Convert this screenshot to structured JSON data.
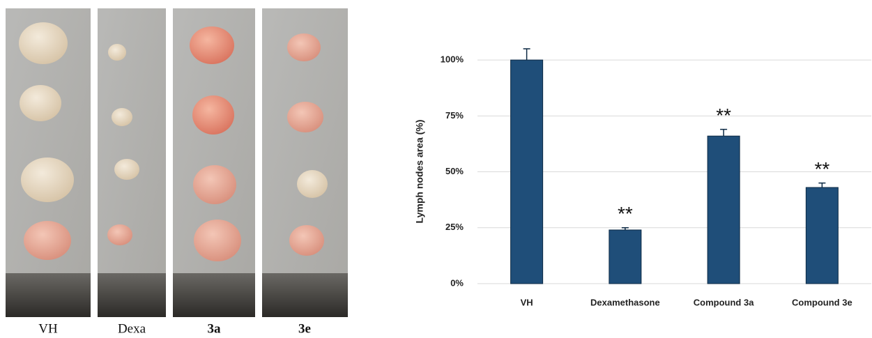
{
  "photo_panels": [
    {
      "label": "VH"
    },
    {
      "label": "Dexa"
    },
    {
      "label": "3a"
    },
    {
      "label": "3e"
    }
  ],
  "chart_data": {
    "type": "bar",
    "y_label": "Lymph nodes area (%)",
    "categories": [
      "VH",
      "Dexamethasone",
      "Compound 3a",
      "Compound 3e"
    ],
    "values": [
      100,
      24,
      66,
      43
    ],
    "errors": [
      5,
      1,
      3,
      2
    ],
    "value_annotations": [
      null,
      "**",
      "**",
      "**"
    ],
    "color": "#1f4e79",
    "ylim": [
      0,
      110
    ],
    "yticks": [
      {
        "value": 0,
        "label": "0%"
      },
      {
        "value": 25,
        "label": "25%"
      },
      {
        "value": 50,
        "label": "50%"
      },
      {
        "value": 75,
        "label": "75%"
      },
      {
        "value": 100,
        "label": "100%"
      }
    ],
    "grid": true
  }
}
